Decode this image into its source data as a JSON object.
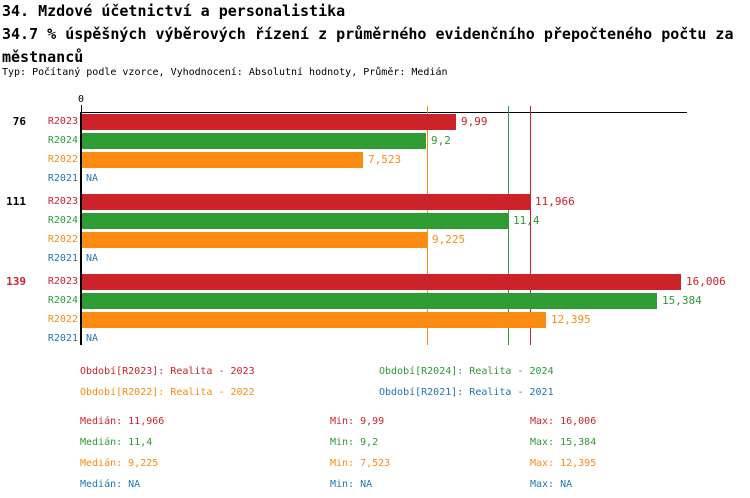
{
  "header": {
    "title": "34. Mzdové účetnictví a personalistika",
    "subtitle_line1": "34.7 % úspěšných výběrových řízení z průměrného evidenčního přepočteného počtu za",
    "subtitle_line2": "městnanců",
    "meta": "Typ: Počítaný podle vzorce, Vyhodnocení: Absolutní hodnoty, Průměr: Medián"
  },
  "colors": {
    "red": "#cc2229",
    "green": "#2e9b33",
    "orange": "#fb8b13",
    "blue": "#1f77b4",
    "axis": "#000000"
  },
  "chart_data": {
    "type": "bar",
    "orientation": "horizontal",
    "x_axis": {
      "zero_label": "0",
      "min": 0,
      "max_estimate": 16.2,
      "grid": false
    },
    "series": [
      {
        "id": "R2023",
        "color": "#cc2229"
      },
      {
        "id": "R2024",
        "color": "#2e9b33"
      },
      {
        "id": "R2022",
        "color": "#fb8b13"
      },
      {
        "id": "R2021",
        "color": "#1f77b4"
      }
    ],
    "groups": [
      {
        "label": "76",
        "highlighted": false,
        "values": [
          {
            "series": "R2023",
            "value": 9.99,
            "display": "9,99"
          },
          {
            "series": "R2024",
            "value": 9.2,
            "display": "9,2"
          },
          {
            "series": "R2022",
            "value": 7.523,
            "display": "7,523"
          },
          {
            "series": "R2021",
            "value": null,
            "display": "NA"
          }
        ]
      },
      {
        "label": "111",
        "highlighted": false,
        "values": [
          {
            "series": "R2023",
            "value": 11.966,
            "display": "11,966"
          },
          {
            "series": "R2024",
            "value": 11.4,
            "display": "11,4"
          },
          {
            "series": "R2022",
            "value": 9.225,
            "display": "9,225"
          },
          {
            "series": "R2021",
            "value": null,
            "display": "NA"
          }
        ]
      },
      {
        "label": "139",
        "highlighted": true,
        "values": [
          {
            "series": "R2023",
            "value": 16.006,
            "display": "16,006"
          },
          {
            "series": "R2024",
            "value": 15.384,
            "display": "15,384"
          },
          {
            "series": "R2022",
            "value": 12.395,
            "display": "12,395"
          },
          {
            "series": "R2021",
            "value": null,
            "display": "NA"
          }
        ]
      }
    ],
    "median_lines": [
      {
        "series": "R2023",
        "value": 11.966
      },
      {
        "series": "R2024",
        "value": 11.4
      },
      {
        "series": "R2022",
        "value": 9.225
      }
    ],
    "legend": [
      {
        "text": "Období[R2023]: Realita - 2023",
        "series": "R2023",
        "col": 0,
        "row": 0
      },
      {
        "text": "Období[R2024]: Realita - 2024",
        "series": "R2024",
        "col": 1,
        "row": 0
      },
      {
        "text": "Období[R2022]: Realita - 2022",
        "series": "R2022",
        "col": 0,
        "row": 1
      },
      {
        "text": "Období[R2021]: Realita - 2021",
        "series": "R2021",
        "col": 1,
        "row": 1
      }
    ],
    "stats": {
      "labels": {
        "median": "Medián:",
        "min": "Min:",
        "max": "Max:"
      },
      "rows": [
        {
          "series": "R2023",
          "median": "11,966",
          "min": "9,99",
          "max": "16,006"
        },
        {
          "series": "R2024",
          "median": "11,4",
          "min": "9,2",
          "max": "15,384"
        },
        {
          "series": "R2022",
          "median": "9,225",
          "min": "7,523",
          "max": "12,395"
        },
        {
          "series": "R2021",
          "median": "NA",
          "min": "NA",
          "max": "NA"
        }
      ]
    }
  }
}
